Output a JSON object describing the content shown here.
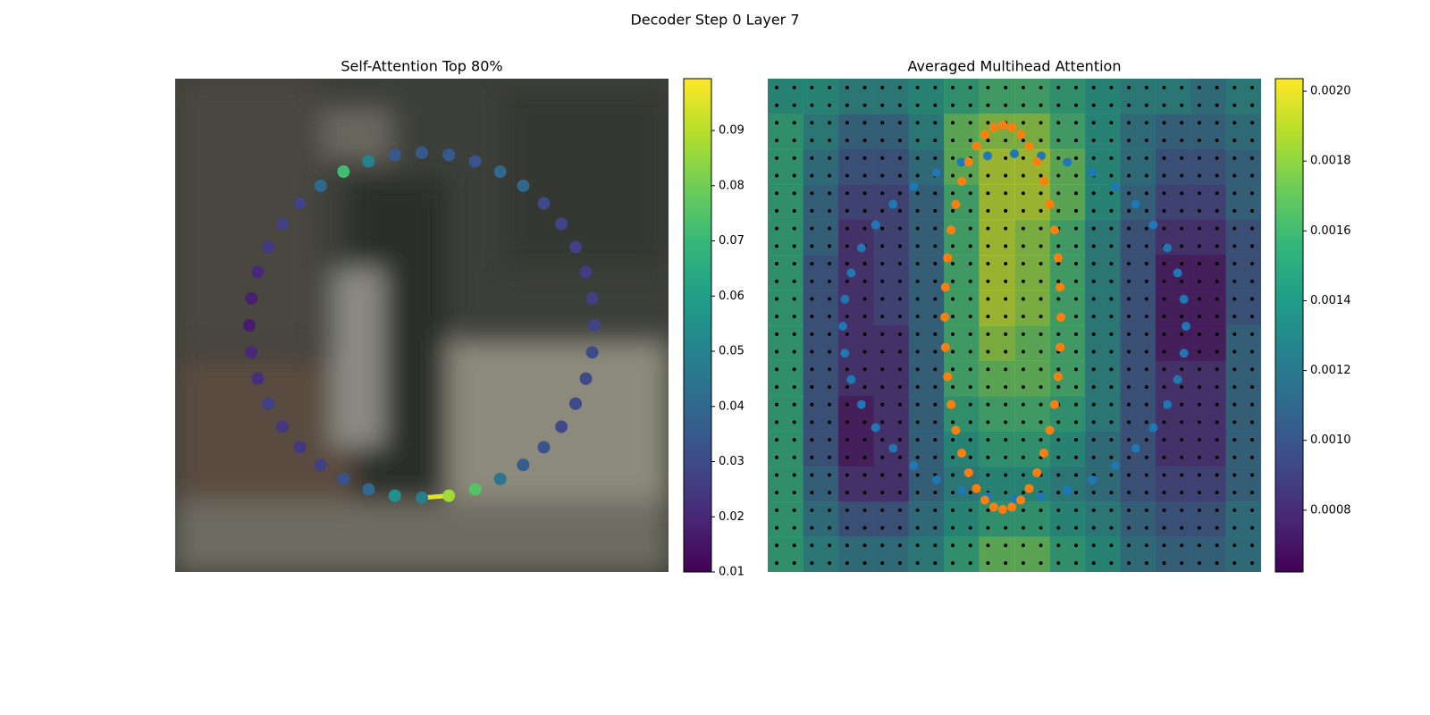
{
  "title": "Decoder Step 0 Layer 7",
  "chart_data": [
    {
      "type": "scatter",
      "title": "Self-Attention Top 80%",
      "colormap": "viridis",
      "values": [
        0.035,
        0.035,
        0.033,
        0.04,
        0.04,
        0.03,
        0.028,
        0.027,
        0.026,
        0.027,
        0.028,
        0.03,
        0.03,
        0.03,
        0.03,
        0.033,
        0.036,
        0.045,
        0.075,
        0.087,
        0.047,
        0.055,
        0.04,
        0.033,
        0.027,
        0.025,
        0.025,
        0.027,
        0.022,
        0.02,
        0.017,
        0.018,
        0.02,
        0.025,
        0.027,
        0.028,
        0.04,
        0.072,
        0.05,
        0.035
      ],
      "links": [
        {
          "source": 20,
          "target": 19,
          "value": 0.096
        }
      ],
      "clim": [
        0.01,
        0.0994
      ],
      "cticks": [
        0.01,
        0.02,
        0.03,
        0.04,
        0.05,
        0.06,
        0.07,
        0.08,
        0.09
      ]
    },
    {
      "type": "heatmap",
      "title": "Averaged Multihead Attention",
      "colormap": "viridis",
      "values": [
        [
          0.0014,
          0.0014,
          0.0013,
          0.0013,
          0.0014,
          0.0015,
          0.0016,
          0.0016,
          0.0015,
          0.0014,
          0.0013,
          0.0013,
          0.0012,
          0.0013
        ],
        [
          0.0015,
          0.0013,
          0.0011,
          0.0011,
          0.0013,
          0.0017,
          0.0018,
          0.0018,
          0.0016,
          0.0014,
          0.0012,
          0.0011,
          0.0011,
          0.0012
        ],
        [
          0.0015,
          0.0012,
          0.001,
          0.001,
          0.0012,
          0.0017,
          0.0019,
          0.0019,
          0.0017,
          0.0014,
          0.0012,
          0.001,
          0.001,
          0.0011
        ],
        [
          0.0015,
          0.0011,
          0.0009,
          0.0009,
          0.0011,
          0.0016,
          0.0019,
          0.0019,
          0.0017,
          0.0014,
          0.0011,
          0.0009,
          0.0009,
          0.0011
        ],
        [
          0.0015,
          0.0011,
          0.0008,
          0.0009,
          0.0011,
          0.0016,
          0.0019,
          0.0018,
          0.0016,
          0.0013,
          0.001,
          0.0008,
          0.0008,
          0.001
        ],
        [
          0.0015,
          0.001,
          0.0008,
          0.0009,
          0.0011,
          0.0016,
          0.0019,
          0.0018,
          0.0016,
          0.0013,
          0.001,
          0.0007,
          0.0007,
          0.001
        ],
        [
          0.0015,
          0.001,
          0.0008,
          0.0009,
          0.0011,
          0.0016,
          0.0019,
          0.0018,
          0.0016,
          0.0013,
          0.001,
          0.0007,
          0.0007,
          0.001
        ],
        [
          0.0015,
          0.001,
          0.0008,
          0.0008,
          0.0011,
          0.0016,
          0.0018,
          0.0017,
          0.0016,
          0.0013,
          0.001,
          0.0007,
          0.0007,
          0.0011
        ],
        [
          0.0015,
          0.001,
          0.0008,
          0.0008,
          0.0011,
          0.0016,
          0.0017,
          0.0017,
          0.0016,
          0.0013,
          0.001,
          0.0008,
          0.0008,
          0.0011
        ],
        [
          0.0015,
          0.001,
          0.0007,
          0.0008,
          0.0011,
          0.0015,
          0.0016,
          0.0016,
          0.0015,
          0.0013,
          0.001,
          0.0008,
          0.0008,
          0.0011
        ],
        [
          0.0015,
          0.001,
          0.0007,
          0.0008,
          0.0011,
          0.0014,
          0.0015,
          0.0015,
          0.0014,
          0.0012,
          0.001,
          0.0008,
          0.0008,
          0.0011
        ],
        [
          0.0015,
          0.0011,
          0.0008,
          0.0008,
          0.0011,
          0.0013,
          0.0014,
          0.0014,
          0.0013,
          0.0012,
          0.001,
          0.0009,
          0.0009,
          0.0011
        ],
        [
          0.0015,
          0.0012,
          0.001,
          0.001,
          0.0012,
          0.0014,
          0.0015,
          0.0015,
          0.0014,
          0.0013,
          0.0011,
          0.001,
          0.001,
          0.0012
        ],
        [
          0.0015,
          0.0013,
          0.0012,
          0.0012,
          0.0013,
          0.0015,
          0.0017,
          0.0017,
          0.0015,
          0.0014,
          0.0012,
          0.0011,
          0.0011,
          0.0012
        ]
      ],
      "clim": [
        0.000623,
        0.002036
      ],
      "cticks": [
        0.0008,
        {
          "value": 0.001,
          "label": "0.0010"
        },
        0.0012,
        0.0014,
        0.0016,
        0.0018,
        {
          "value": 0.002,
          "label": "0.0020"
        }
      ]
    }
  ]
}
